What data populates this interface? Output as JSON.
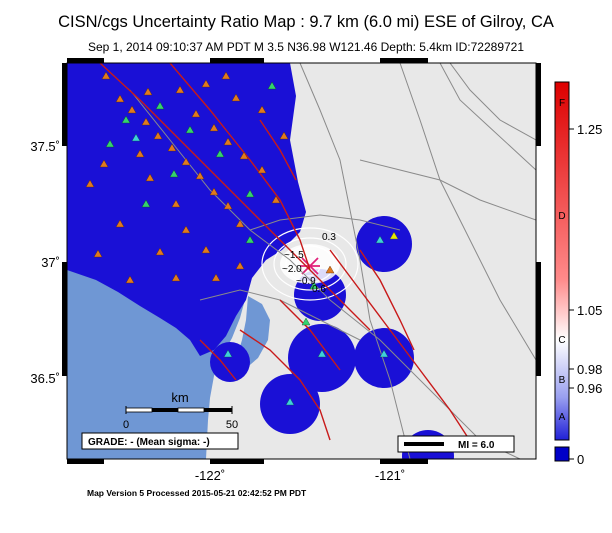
{
  "title": "CISN/cgs Uncertainty Ratio Map : 9.7 km (6.0 mi) ESE of Gilroy, CA",
  "subtitle": "Sep  1, 2014 09:10:37 AM PDT    M 3.5    N36.98 W121.46    Depth: 5.4km    ID:72289721",
  "footer": "Map Version 5 Processed 2015-05-21 02:42:52 PM PDT",
  "map": {
    "lat_ticks": [
      "37.5˚",
      "37˚",
      "36.5˚"
    ],
    "lon_ticks": [
      "-122˚",
      "-121˚"
    ],
    "contour_labels": [
      "0.3",
      "~1.5",
      "~2.0",
      "0.6",
      "~0.9"
    ],
    "scale_bar": {
      "unit": "km",
      "ticks": [
        "0",
        "50"
      ]
    },
    "grade_box": "GRADE: - (Mean sigma: -)",
    "mi_legend": "MI = 6.0",
    "colors": {
      "ocean": "#6f97d4",
      "land": "#e8e8e8",
      "uncertainty_fill": "#1a10d6",
      "fault": "#c81a1a",
      "road": "#8a8a8a",
      "station_orange": "#e07a1f",
      "station_green": "#35d26e",
      "station_cyan": "#3fd0d8"
    }
  },
  "colorbar": {
    "letters": [
      "F",
      "D",
      "C",
      "B",
      "A"
    ],
    "values": [
      "1.25",
      "1.05",
      "0.98",
      "0.96",
      "0"
    ],
    "colors": [
      "#dd0000",
      "#ff9a9a",
      "#ffffff",
      "#9aa0f0",
      "#0000c8"
    ]
  }
}
